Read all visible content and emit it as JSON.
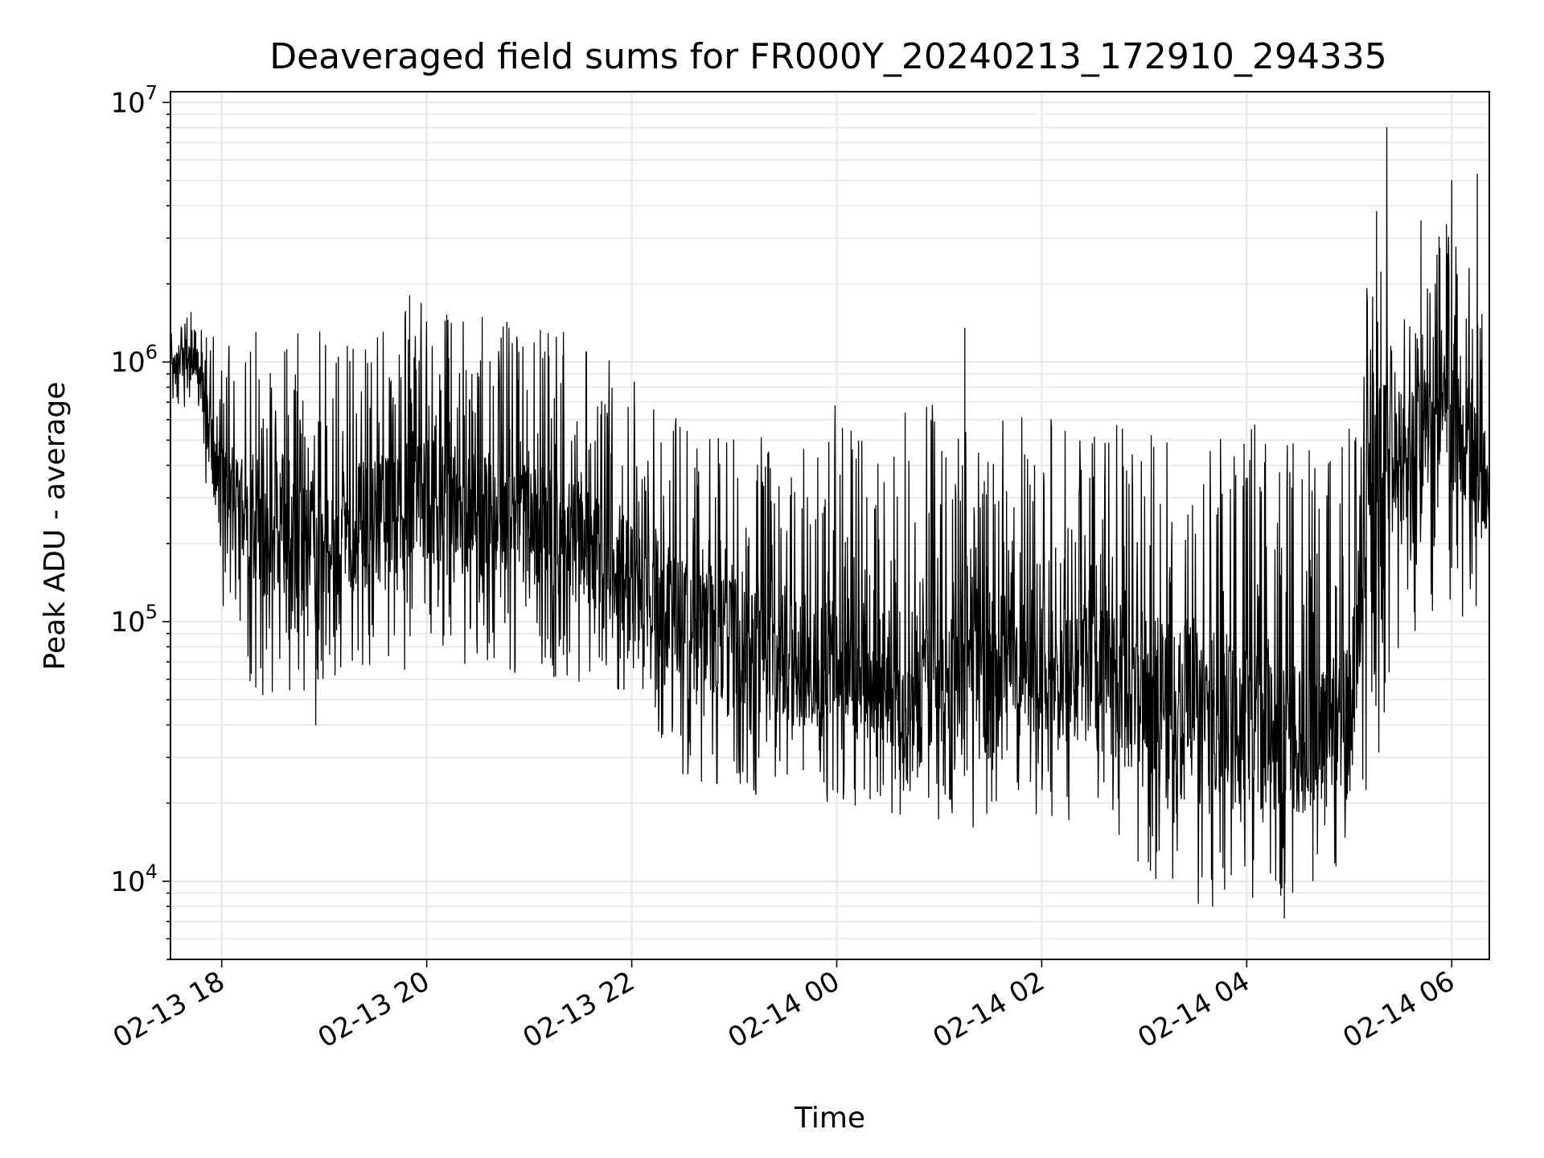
{
  "chart_data": {
    "type": "line",
    "title": "Deaveraged field sums for FR000Y_20240213_172910_294335",
    "xlabel": "Time",
    "ylabel": "Peak ADU - average",
    "yscale": "log",
    "ylim": [
      5000,
      11000000
    ],
    "xlim": [
      "2024-02-13 17:30",
      "2024-02-14 06:22"
    ],
    "x_ticks": [
      "02-13 18",
      "02-13 20",
      "02-13 22",
      "02-14 00",
      "02-14 02",
      "02-14 04",
      "02-14 06"
    ],
    "y_ticks": [
      10000,
      100000,
      1000000,
      10000000
    ],
    "y_tick_labels": [
      {
        "base": "10",
        "exp": "4"
      },
      {
        "base": "10",
        "exp": "5"
      },
      {
        "base": "10",
        "exp": "6"
      },
      {
        "base": "10",
        "exp": "7"
      }
    ],
    "grid": true,
    "line_color": "#000000",
    "series": [
      {
        "name": "",
        "x": [
          "2024-02-13 17:30",
          "2024-02-13 17:45",
          "2024-02-13 18:00",
          "2024-02-13 18:15",
          "2024-02-13 18:30",
          "2024-02-13 19:00",
          "2024-02-13 19:30",
          "2024-02-13 20:00",
          "2024-02-13 20:30",
          "2024-02-13 21:00",
          "2024-02-13 21:30",
          "2024-02-13 22:00",
          "2024-02-13 22:30",
          "2024-02-13 23:00",
          "2024-02-13 23:30",
          "2024-02-14 00:00",
          "2024-02-14 00:30",
          "2024-02-14 01:00",
          "2024-02-14 01:30",
          "2024-02-14 02:00",
          "2024-02-14 02:30",
          "2024-02-14 03:00",
          "2024-02-14 03:30",
          "2024-02-14 04:00",
          "2024-02-14 04:30",
          "2024-02-14 05:00",
          "2024-02-14 05:15",
          "2024-02-14 05:30",
          "2024-02-14 06:00",
          "2024-02-14 06:22"
        ],
        "typical": [
          1000000,
          1000000,
          300000,
          250000,
          200000,
          200000,
          250000,
          300000,
          250000,
          250000,
          200000,
          150000,
          100000,
          80000,
          70000,
          70000,
          60000,
          60000,
          55000,
          70000,
          60000,
          55000,
          50000,
          40000,
          35000,
          40000,
          400000,
          500000,
          600000,
          300000
        ],
        "upper": [
          1500000,
          1500000,
          1200000,
          1100000,
          1200000,
          1400000,
          1600000,
          1700000,
          1500000,
          1400000,
          1200000,
          900000,
          600000,
          550000,
          600000,
          700000,
          650000,
          800000,
          600000,
          650000,
          550000,
          600000,
          550000,
          600000,
          550000,
          600000,
          3500000,
          1500000,
          4500000,
          1800000
        ],
        "lower": [
          700000,
          600000,
          100000,
          55000,
          50000,
          55000,
          60000,
          70000,
          65000,
          60000,
          55000,
          50000,
          25000,
          22000,
          20000,
          20000,
          18000,
          16000,
          15000,
          17000,
          15000,
          11000,
          8000,
          8000,
          9000,
          12000,
          20000,
          90000,
          90000,
          100000
        ],
        "spikes": [
          {
            "x": "2024-02-13 17:42",
            "y": 1550000
          },
          {
            "x": "2024-02-13 18:05",
            "y": 130000
          },
          {
            "x": "2024-02-13 18:20",
            "y": 1300000
          },
          {
            "x": "2024-02-13 18:55",
            "y": 40000
          },
          {
            "x": "2024-02-13 19:50",
            "y": 1800000
          },
          {
            "x": "2024-02-13 21:20",
            "y": 1300000
          },
          {
            "x": "2024-02-14 01:15",
            "y": 1350000
          },
          {
            "x": "2024-02-14 03:40",
            "y": 8000
          },
          {
            "x": "2024-02-14 04:22",
            "y": 7200
          },
          {
            "x": "2024-02-14 05:16",
            "y": 3800000
          },
          {
            "x": "2024-02-14 05:22",
            "y": 8000000
          },
          {
            "x": "2024-02-14 05:42",
            "y": 3500000
          },
          {
            "x": "2024-02-14 06:00",
            "y": 5000000
          },
          {
            "x": "2024-02-14 06:15",
            "y": 5300000
          }
        ]
      }
    ]
  }
}
